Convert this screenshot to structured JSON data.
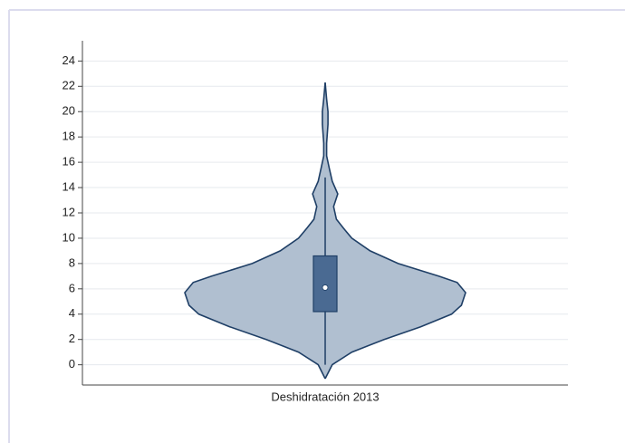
{
  "chart_data": {
    "type": "violin",
    "categories": [
      "Deshidratación 2013"
    ],
    "violin": {
      "y": [
        -1.1,
        0,
        1,
        2,
        3,
        4,
        4.7,
        5.7,
        6.5,
        7,
        8,
        9,
        10,
        10.8,
        11.5,
        12.5,
        13.5,
        14.5,
        15.5,
        16.5,
        17.5,
        19,
        20,
        21,
        22.3
      ],
      "density": [
        0,
        0.05,
        0.19,
        0.42,
        0.68,
        0.9,
        0.97,
        1,
        0.94,
        0.81,
        0.52,
        0.32,
        0.19,
        0.13,
        0.08,
        0.06,
        0.09,
        0.05,
        0.03,
        0.01,
        0.01,
        0.02,
        0.02,
        0.01,
        0
      ]
    },
    "box": {
      "whisker_low": 0,
      "q1": 4.2,
      "median": 6.1,
      "q3": 8.6,
      "whisker_high": 14.8
    },
    "ylim": [
      -1.6,
      25.6
    ],
    "yticks": [
      0,
      2,
      4,
      6,
      8,
      10,
      12,
      14,
      16,
      18,
      20,
      22,
      24
    ],
    "grid": true,
    "fill_color": "#b0bfd0",
    "line_color": "#1f3f66",
    "box_color": "#4a6a92"
  }
}
